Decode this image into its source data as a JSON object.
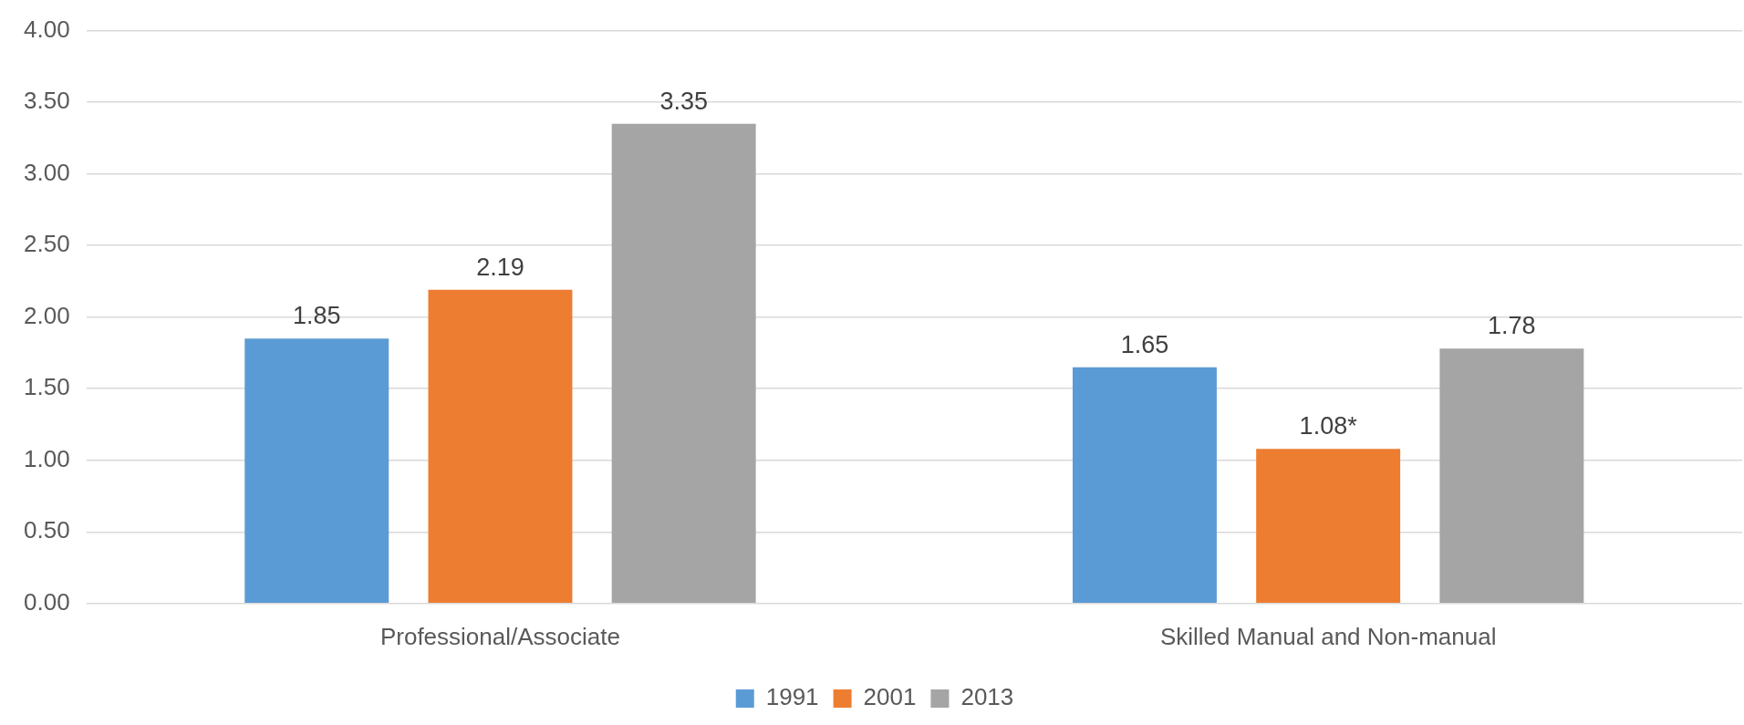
{
  "chart_data": {
    "type": "bar",
    "categories": [
      "Professional/Associate",
      "Skilled Manual and Non-manual"
    ],
    "series": [
      {
        "name": "1991",
        "color": "#5b9bd5",
        "values": [
          1.85,
          1.65
        ],
        "value_labels": [
          "1.85",
          "1.65"
        ]
      },
      {
        "name": "2001",
        "color": "#ed7d31",
        "values": [
          2.19,
          1.08
        ],
        "value_labels": [
          "2.19",
          "1.08*"
        ]
      },
      {
        "name": "2013",
        "color": "#a5a5a5",
        "values": [
          3.35,
          1.78
        ],
        "value_labels": [
          "3.35",
          "1.78"
        ]
      }
    ],
    "ylim": [
      0,
      4
    ],
    "yticks": [
      {
        "value": 0,
        "label": "0.00"
      },
      {
        "value": 0.5,
        "label": "0.50"
      },
      {
        "value": 1,
        "label": "1.00"
      },
      {
        "value": 1.5,
        "label": "1.50"
      },
      {
        "value": 2,
        "label": "2.00"
      },
      {
        "value": 2.5,
        "label": "2.50"
      },
      {
        "value": 3,
        "label": "3.00"
      },
      {
        "value": 3.5,
        "label": "3.50"
      },
      {
        "value": 4,
        "label": "4.00"
      }
    ],
    "grid": "y",
    "legend": "bottom"
  }
}
